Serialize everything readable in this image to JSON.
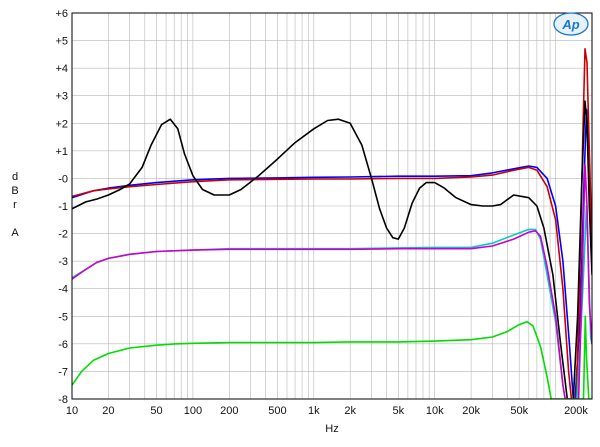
{
  "chart_data": {
    "type": "line",
    "xscale": "log",
    "xlim": [
      10,
      200000
    ],
    "ylim": [
      -8,
      6
    ],
    "grid": true,
    "xlabel": "Hz",
    "ylabel_lines": [
      "d",
      "B",
      "r",
      "",
      "A"
    ],
    "logo_text": "Ap",
    "y_ticks": [
      {
        "v": 6,
        "label": "+6"
      },
      {
        "v": 5,
        "label": "+5"
      },
      {
        "v": 4,
        "label": "+4"
      },
      {
        "v": 3,
        "label": "+3"
      },
      {
        "v": 2,
        "label": "+2"
      },
      {
        "v": 1,
        "label": "+1"
      },
      {
        "v": 0,
        "label": "-0"
      },
      {
        "v": -1,
        "label": "-1"
      },
      {
        "v": -2,
        "label": "-2"
      },
      {
        "v": -3,
        "label": "-3"
      },
      {
        "v": -4,
        "label": "-4"
      },
      {
        "v": -5,
        "label": "-5"
      },
      {
        "v": -6,
        "label": "-6"
      },
      {
        "v": -7,
        "label": "-7"
      },
      {
        "v": -8,
        "label": "-8"
      }
    ],
    "x_ticks": [
      {
        "v": 10,
        "label": "10"
      },
      {
        "v": 20,
        "label": "20"
      },
      {
        "v": 50,
        "label": "50"
      },
      {
        "v": 100,
        "label": "100"
      },
      {
        "v": 200,
        "label": "200"
      },
      {
        "v": 500,
        "label": "500"
      },
      {
        "v": 1000,
        "label": "1k"
      },
      {
        "v": 2000,
        "label": "2k"
      },
      {
        "v": 5000,
        "label": "5k"
      },
      {
        "v": 10000,
        "label": "10k"
      },
      {
        "v": 20000,
        "label": "20k"
      },
      {
        "v": 50000,
        "label": "50k"
      },
      {
        "v": 200000,
        "label": "200k"
      }
    ],
    "series": [
      {
        "color": "#0000ff",
        "points": [
          [
            10,
            -0.7
          ],
          [
            15,
            -0.45
          ],
          [
            20,
            -0.35
          ],
          [
            30,
            -0.25
          ],
          [
            50,
            -0.15
          ],
          [
            100,
            -0.05
          ],
          [
            200,
            0.0
          ],
          [
            500,
            0.02
          ],
          [
            1000,
            0.04
          ],
          [
            2000,
            0.05
          ],
          [
            5000,
            0.08
          ],
          [
            10000,
            0.08
          ],
          [
            20000,
            0.1
          ],
          [
            30000,
            0.2
          ],
          [
            45000,
            0.35
          ],
          [
            60000,
            0.45
          ],
          [
            70000,
            0.4
          ],
          [
            85000,
            0.0
          ],
          [
            100000,
            -1.0
          ],
          [
            115000,
            -3.0
          ],
          [
            130000,
            -6.0
          ],
          [
            140000,
            -8.0
          ],
          [
            145000,
            -8.0
          ],
          [
            160000,
            -5.0
          ],
          [
            172000,
            0.0
          ],
          [
            180000,
            2.5
          ],
          [
            188000,
            1.0
          ],
          [
            195000,
            -1.5
          ],
          [
            200000,
            -2.5
          ]
        ]
      },
      {
        "color": "#cc0000",
        "points": [
          [
            10,
            -0.65
          ],
          [
            15,
            -0.45
          ],
          [
            20,
            -0.38
          ],
          [
            30,
            -0.3
          ],
          [
            50,
            -0.22
          ],
          [
            100,
            -0.12
          ],
          [
            200,
            -0.05
          ],
          [
            500,
            -0.03
          ],
          [
            1000,
            -0.02
          ],
          [
            2000,
            -0.02
          ],
          [
            5000,
            0.0
          ],
          [
            10000,
            0.0
          ],
          [
            20000,
            0.05
          ],
          [
            30000,
            0.12
          ],
          [
            45000,
            0.3
          ],
          [
            60000,
            0.4
          ],
          [
            70000,
            0.3
          ],
          [
            85000,
            -0.3
          ],
          [
            100000,
            -1.5
          ],
          [
            115000,
            -4.0
          ],
          [
            128000,
            -7.0
          ],
          [
            135000,
            -8.0
          ],
          [
            148000,
            -8.0
          ],
          [
            158000,
            -4.0
          ],
          [
            168000,
            1.5
          ],
          [
            175000,
            4.7
          ],
          [
            182000,
            4.2
          ],
          [
            190000,
            1.0
          ],
          [
            200000,
            -2.4
          ]
        ]
      },
      {
        "color": "#000000",
        "points": [
          [
            10,
            -1.1
          ],
          [
            13,
            -0.85
          ],
          [
            16,
            -0.75
          ],
          [
            20,
            -0.6
          ],
          [
            25,
            -0.4
          ],
          [
            30,
            -0.2
          ],
          [
            38,
            0.4
          ],
          [
            45,
            1.2
          ],
          [
            55,
            1.95
          ],
          [
            65,
            2.15
          ],
          [
            75,
            1.8
          ],
          [
            85,
            0.9
          ],
          [
            100,
            0.1
          ],
          [
            120,
            -0.4
          ],
          [
            150,
            -0.6
          ],
          [
            200,
            -0.6
          ],
          [
            250,
            -0.4
          ],
          [
            350,
            0.1
          ],
          [
            500,
            0.7
          ],
          [
            700,
            1.3
          ],
          [
            1000,
            1.8
          ],
          [
            1300,
            2.1
          ],
          [
            1600,
            2.15
          ],
          [
            2000,
            2.0
          ],
          [
            2500,
            1.2
          ],
          [
            3000,
            0.0
          ],
          [
            3500,
            -1.1
          ],
          [
            4000,
            -1.8
          ],
          [
            4500,
            -2.15
          ],
          [
            5000,
            -2.2
          ],
          [
            5600,
            -1.8
          ],
          [
            6500,
            -0.9
          ],
          [
            7500,
            -0.35
          ],
          [
            8500,
            -0.15
          ],
          [
            10000,
            -0.15
          ],
          [
            12000,
            -0.35
          ],
          [
            15000,
            -0.7
          ],
          [
            20000,
            -0.95
          ],
          [
            25000,
            -1.0
          ],
          [
            30000,
            -1.0
          ],
          [
            35000,
            -0.95
          ],
          [
            45000,
            -0.6
          ],
          [
            60000,
            -0.7
          ],
          [
            70000,
            -1.0
          ],
          [
            80000,
            -1.8
          ],
          [
            95000,
            -3.5
          ],
          [
            110000,
            -6.0
          ],
          [
            125000,
            -8.0
          ],
          [
            140000,
            -8.0
          ],
          [
            152000,
            -5.0
          ],
          [
            165000,
            0.0
          ],
          [
            175000,
            2.8
          ],
          [
            182000,
            2.0
          ],
          [
            190000,
            -1.0
          ],
          [
            200000,
            -3.5
          ]
        ]
      },
      {
        "color": "#00cccc",
        "points": [
          [
            10,
            -3.6
          ],
          [
            13,
            -3.3
          ],
          [
            16,
            -3.05
          ],
          [
            20,
            -2.9
          ],
          [
            30,
            -2.75
          ],
          [
            50,
            -2.65
          ],
          [
            100,
            -2.6
          ],
          [
            200,
            -2.55
          ],
          [
            500,
            -2.55
          ],
          [
            1000,
            -2.55
          ],
          [
            2000,
            -2.55
          ],
          [
            5000,
            -2.52
          ],
          [
            10000,
            -2.5
          ],
          [
            20000,
            -2.5
          ],
          [
            30000,
            -2.35
          ],
          [
            45000,
            -2.05
          ],
          [
            60000,
            -1.85
          ],
          [
            68000,
            -1.85
          ],
          [
            75000,
            -2.2
          ],
          [
            85000,
            -3.5
          ],
          [
            100000,
            -5.2
          ],
          [
            115000,
            -7.5
          ],
          [
            120000,
            -8.0
          ],
          [
            150000,
            -8.0
          ],
          [
            162000,
            -5.5
          ],
          [
            172000,
            -3.0
          ],
          [
            180000,
            -1.0
          ],
          [
            188000,
            -3.5
          ],
          [
            195000,
            -5.8
          ],
          [
            200000,
            -6.0
          ]
        ]
      },
      {
        "color": "#cc00cc",
        "points": [
          [
            10,
            -3.65
          ],
          [
            13,
            -3.3
          ],
          [
            16,
            -3.05
          ],
          [
            20,
            -2.9
          ],
          [
            30,
            -2.75
          ],
          [
            50,
            -2.65
          ],
          [
            100,
            -2.6
          ],
          [
            200,
            -2.57
          ],
          [
            500,
            -2.57
          ],
          [
            1000,
            -2.57
          ],
          [
            2000,
            -2.57
          ],
          [
            5000,
            -2.55
          ],
          [
            10000,
            -2.55
          ],
          [
            20000,
            -2.55
          ],
          [
            30000,
            -2.45
          ],
          [
            45000,
            -2.2
          ],
          [
            60000,
            -1.95
          ],
          [
            68000,
            -1.9
          ],
          [
            75000,
            -2.1
          ],
          [
            85000,
            -3.2
          ],
          [
            100000,
            -5.0
          ],
          [
            115000,
            -7.5
          ],
          [
            120000,
            -8.0
          ],
          [
            155000,
            -8.0
          ],
          [
            165000,
            -4.0
          ],
          [
            175000,
            0.5
          ],
          [
            182000,
            -1.0
          ],
          [
            190000,
            -4.5
          ],
          [
            200000,
            -6.0
          ]
        ]
      },
      {
        "color": "#00dd00",
        "points": [
          [
            10,
            -7.5
          ],
          [
            12,
            -7.0
          ],
          [
            15,
            -6.6
          ],
          [
            20,
            -6.35
          ],
          [
            30,
            -6.15
          ],
          [
            50,
            -6.05
          ],
          [
            70,
            -6.0
          ],
          [
            100,
            -5.98
          ],
          [
            200,
            -5.95
          ],
          [
            500,
            -5.95
          ],
          [
            1000,
            -5.95
          ],
          [
            2000,
            -5.93
          ],
          [
            5000,
            -5.93
          ],
          [
            10000,
            -5.9
          ],
          [
            20000,
            -5.85
          ],
          [
            30000,
            -5.75
          ],
          [
            40000,
            -5.55
          ],
          [
            50000,
            -5.3
          ],
          [
            58000,
            -5.2
          ],
          [
            65000,
            -5.35
          ],
          [
            75000,
            -6.1
          ],
          [
            85000,
            -7.2
          ],
          [
            92000,
            -8.0
          ],
          [
            170000,
            -8.0
          ],
          [
            176000,
            -5.0
          ],
          [
            180000,
            -6.5
          ],
          [
            188000,
            -8.0
          ],
          [
            200000,
            -8.0
          ]
        ]
      }
    ]
  }
}
